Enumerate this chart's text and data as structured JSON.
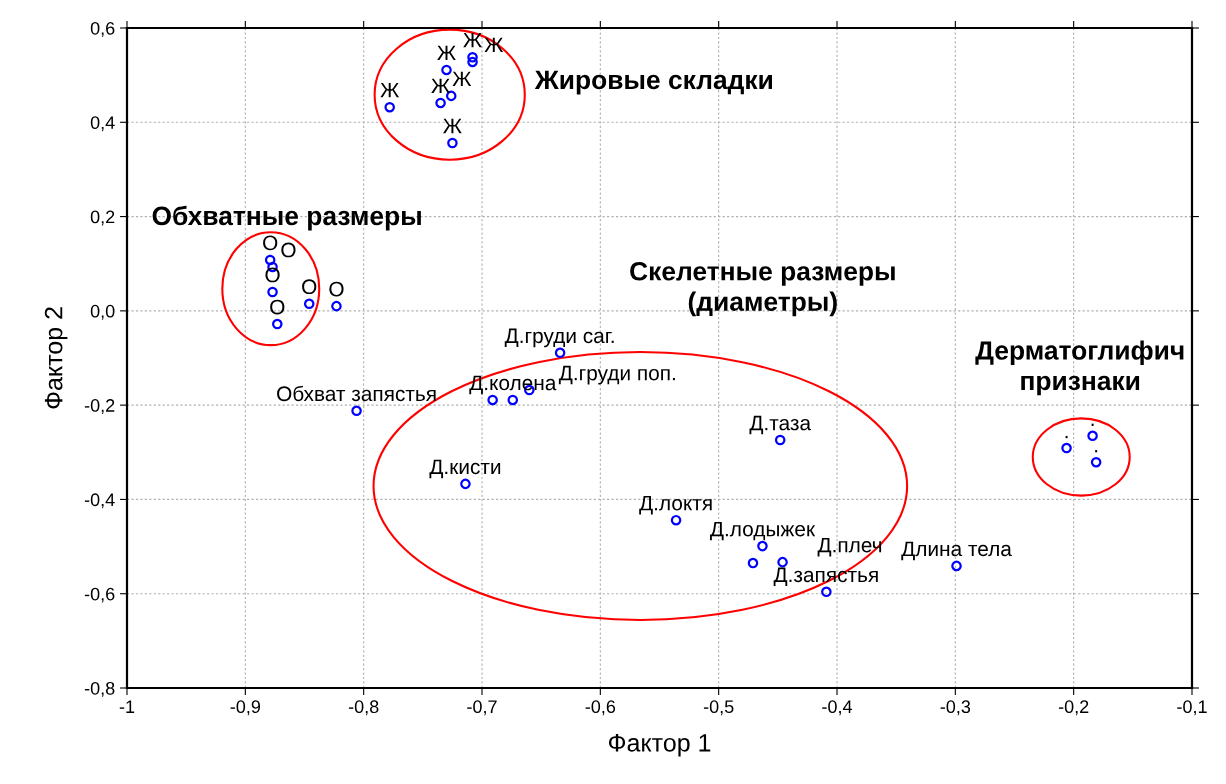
{
  "chart_data": {
    "type": "scatter",
    "xlabel": "Фактор 1",
    "ylabel": "Фактор 2",
    "x": [
      -0.778,
      -0.725,
      -0.735,
      -0.726,
      -0.73,
      -0.708,
      -0.708,
      -0.879,
      -0.877,
      -0.877,
      -0.873,
      -0.846,
      -0.823,
      -0.806,
      -0.691,
      -0.674,
      -0.66,
      -0.634,
      -0.714,
      -0.448,
      -0.536,
      -0.463,
      -0.471,
      -0.446,
      -0.409,
      -0.299,
      -0.206,
      -0.184,
      -0.181
    ],
    "values": [
      0.432,
      0.356,
      0.441,
      0.456,
      0.511,
      0.538,
      0.528,
      0.108,
      0.093,
      0.04,
      -0.028,
      0.015,
      0.01,
      -0.212,
      -0.189,
      -0.189,
      -0.168,
      -0.089,
      -0.367,
      -0.274,
      -0.444,
      -0.499,
      -0.535,
      -0.533,
      -0.596,
      -0.541,
      -0.291,
      -0.265,
      -0.321
    ],
    "color": "#0000ff",
    "marker": "circle",
    "grid": true,
    "xlim": [
      -1,
      -0.1
    ],
    "ylim": [
      -0.8,
      0.6
    ],
    "xticks": [
      -1,
      {
        "value": -0.9,
        "label": "-0,9"
      },
      {
        "value": -0.8,
        "label": "-0,8"
      },
      {
        "value": -0.7,
        "label": "-0,7"
      },
      {
        "value": -0.6,
        "label": "-0,6"
      },
      {
        "value": -0.5,
        "label": "-0,5"
      },
      {
        "value": -0.4,
        "label": "-0,4"
      },
      {
        "value": -0.3,
        "label": "-0,3"
      },
      {
        "value": -0.2,
        "label": "-0,2"
      },
      {
        "value": -0.1,
        "label": "-0,1"
      }
    ],
    "yticks": [
      {
        "value": -0.8,
        "label": "-0,8"
      },
      {
        "value": -0.6,
        "label": "-0,6"
      },
      {
        "value": -0.4,
        "label": "-0,4"
      },
      {
        "value": -0.2,
        "label": "-0,2"
      },
      {
        "value": 0,
        "label": "0,0"
      },
      {
        "value": 0.2,
        "label": "0,2"
      },
      {
        "value": 0.4,
        "label": "0,4"
      },
      {
        "value": 0.6,
        "label": "0,6"
      }
    ],
    "annotations": [
      "Жировые складки",
      "Обхватные размеры",
      "Скелетные размеры\n(диаметры)",
      "Дерматоглифич\nпризнаки",
      {
        "text": "Ж",
        "x": -0.778,
        "y": 0.432
      },
      {
        "text": "Ж",
        "x": -0.725,
        "y": 0.356
      },
      {
        "text": "Ж",
        "x": -0.735,
        "y": 0.441
      },
      {
        "text": "Ж",
        "x": -0.726,
        "y": 0.456
      },
      {
        "text": "Ж",
        "x": -0.73,
        "y": 0.511
      },
      {
        "text": "Ж",
        "x": -0.708,
        "y": 0.538
      },
      {
        "text": "Ж",
        "x": -0.708,
        "y": 0.528
      },
      {
        "text": "О",
        "x": -0.879,
        "y": 0.108
      },
      {
        "text": "О",
        "x": -0.877,
        "y": 0.093
      },
      {
        "text": "О",
        "x": -0.877,
        "y": 0.04
      },
      {
        "text": "О",
        "x": -0.873,
        "y": -0.028
      },
      {
        "text": "О",
        "x": -0.846,
        "y": 0.015
      },
      {
        "text": "О",
        "x": -0.823,
        "y": 0.01
      },
      {
        "text": "Обхват запястья",
        "x": -0.806,
        "y": -0.212
      },
      {
        "text": "Д.колена",
        "x": -0.674,
        "y": -0.189
      },
      {
        "text": "Д.груди поп.",
        "x": -0.66,
        "y": -0.168
      },
      {
        "text": "Д.груди саг.",
        "x": -0.634,
        "y": -0.089
      },
      {
        "text": "Д.кисти",
        "x": -0.714,
        "y": -0.367
      },
      {
        "text": "Д.таза",
        "x": -0.448,
        "y": -0.274
      },
      {
        "text": "Д.локтя",
        "x": -0.536,
        "y": -0.444
      },
      {
        "text": "Д.лодыжек",
        "x": -0.463,
        "y": -0.499
      },
      {
        "text": "Д.плеч",
        "x": -0.446,
        "y": -0.533
      },
      {
        "text": "Д.запястья",
        "x": -0.409,
        "y": -0.596
      },
      {
        "text": "Длина тела",
        "x": -0.299,
        "y": -0.541
      },
      {
        "text": ".",
        "x": -0.206,
        "y": -0.291
      },
      {
        "text": ".",
        "x": -0.184,
        "y": -0.265
      },
      {
        "text": ".",
        "x": -0.181,
        "y": -0.321
      }
    ]
  }
}
